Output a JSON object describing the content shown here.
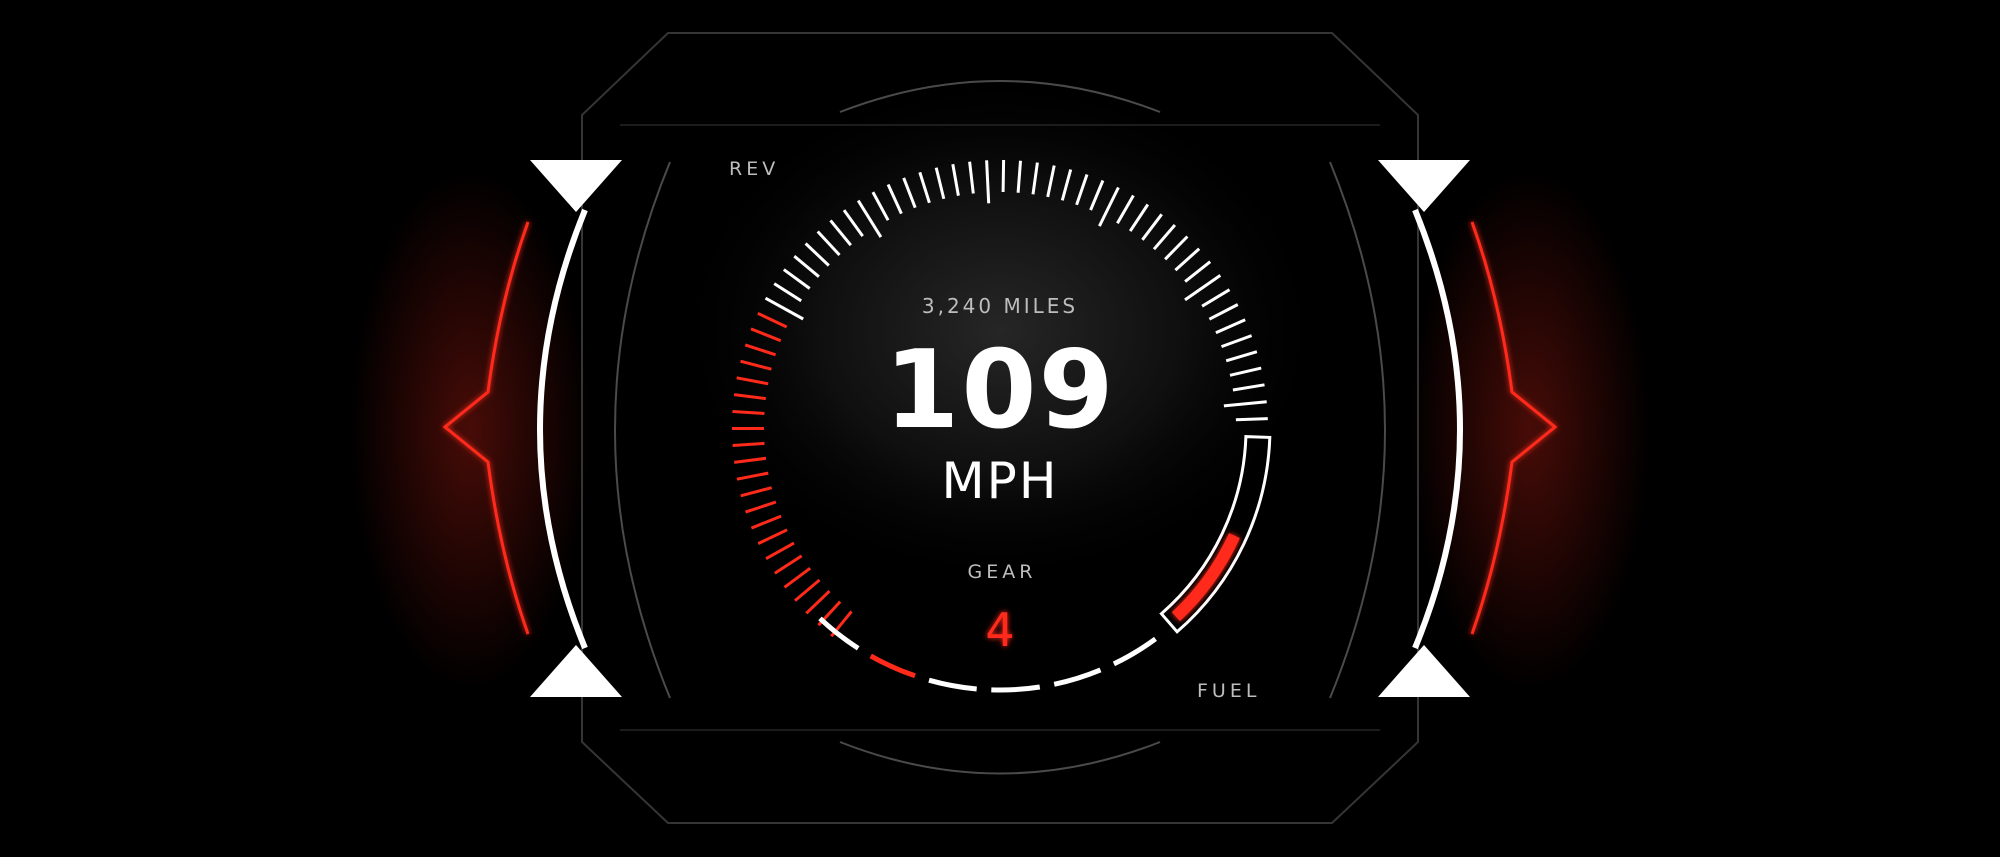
{
  "dashboard": {
    "odometer": "3,240 MILES",
    "speed": "109",
    "speed_unit": "MPH",
    "gear_label": "GEAR",
    "gear_value": "4",
    "rev_label": "REV",
    "fuel_label": "FUEL"
  },
  "gauges": {
    "speed_ticks_total": 64,
    "speed_ticks_red": 22,
    "fuel_level": 0.55,
    "rev_segments_total": 6,
    "rev_segments_red": 1
  },
  "colors": {
    "accent": "#ff2a1a",
    "primary": "#ffffff",
    "frame": "#3a3a3a",
    "label": "#bdbdbd"
  }
}
